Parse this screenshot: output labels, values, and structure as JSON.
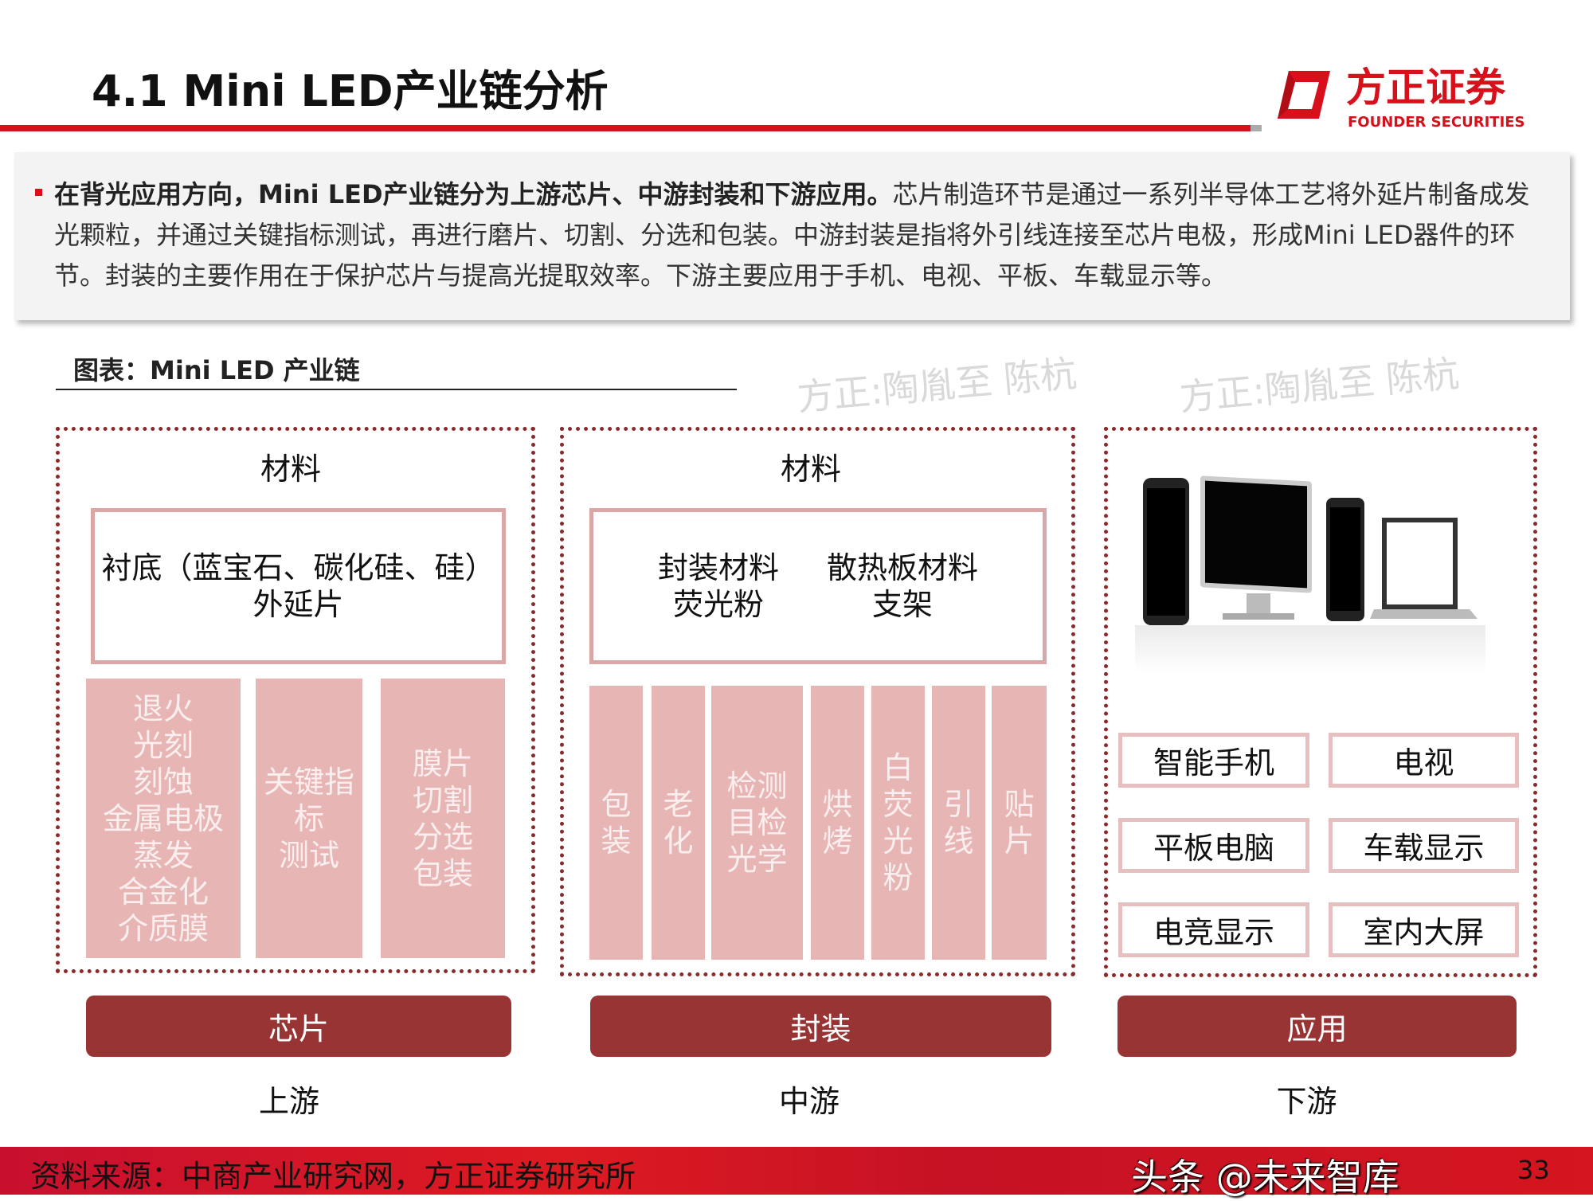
{
  "header": {
    "title": "4.1 Mini LED产业链分析",
    "logo_cn": "方正证券",
    "logo_en": "FOUNDER SECURITIES",
    "brand_color": "#d7101b"
  },
  "summary": {
    "bold": "在背光应用方向，Mini  LED产业链分为上游芯片、中游封装和下游应用。",
    "text": "芯片制造环节是通过一系列半导体工艺将外延片制备成发光颗粒，并通过关键指标测试，再进行磨片、切割、分选和包装。中游封装是指将外引线连接至芯片电极，形成Mini LED器件的环节。封装的主要作用在于保护芯片与提高光提取效率。下游主要应用于手机、电视、平板、车载显示等。"
  },
  "caption": "图表：Mini LED 产业链",
  "upstream": {
    "material_title": "材料",
    "material_line1": "衬底（蓝宝石、碳化硅、硅）",
    "material_line2": "外延片",
    "processes": [
      "退火\n光刻\n刻蚀\n金属电极\n蒸发\n合金化\n介质膜",
      "关键指\n标\n测试",
      "膜片\n切割\n分选\n包装"
    ],
    "button": "芯片",
    "label": "上游"
  },
  "midstream": {
    "material_title": "材料",
    "materials": [
      [
        "封装材料",
        "荧光粉"
      ],
      [
        "散热板材料",
        "支架"
      ]
    ],
    "processes": [
      "包\n装",
      "老\n化",
      "检测\n目检\n光学",
      "烘\n烤",
      "白\n荧\n光\n粉",
      "引\n线",
      "贴\n片"
    ],
    "button": "封装",
    "label": "中游"
  },
  "downstream": {
    "apps": [
      "智能手机",
      "电视",
      "平板电脑",
      "车载显示",
      "电竞显示",
      "室内大屏"
    ],
    "button": "应用",
    "label": "下游"
  },
  "watermark": "方正:陶胤至 陈杭",
  "footer": {
    "source": "资料来源：中商产业研究网，方正证券研究所",
    "page": "33",
    "overlay": "头条 @未来智库"
  }
}
